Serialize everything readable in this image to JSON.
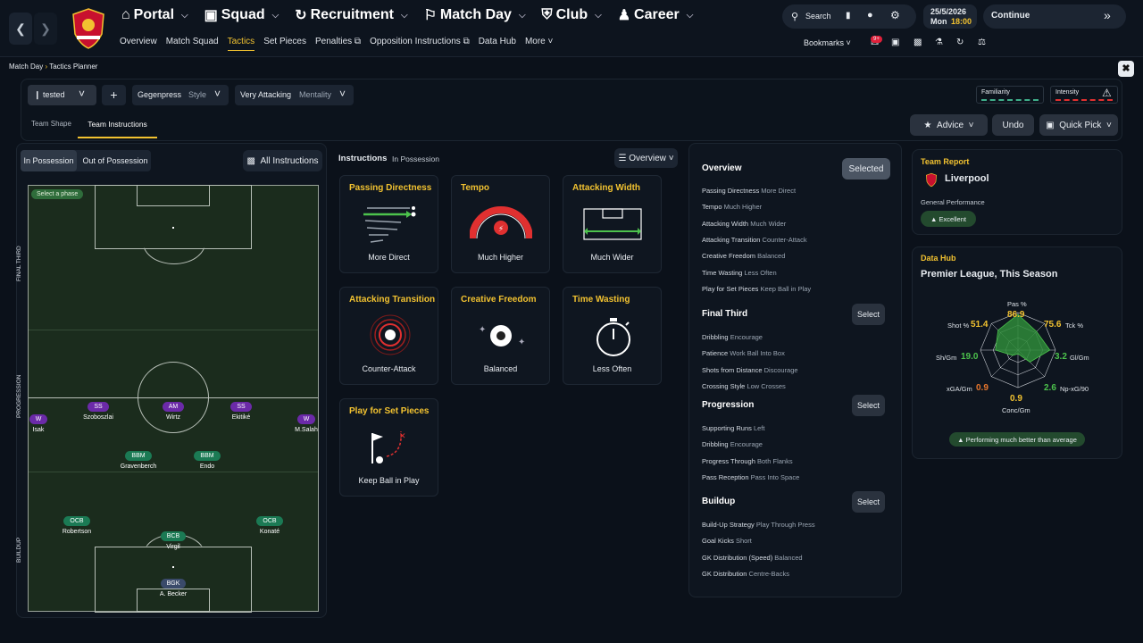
{
  "topbar": {
    "nav": [
      {
        "label": "Portal",
        "icon": "home-icon"
      },
      {
        "label": "Squad",
        "icon": "shirt-icon"
      },
      {
        "label": "Recruitment",
        "icon": "refresh-icon"
      },
      {
        "label": "Match Day",
        "icon": "whistle-icon"
      },
      {
        "label": "Club",
        "icon": "shield-icon"
      },
      {
        "label": "Career",
        "icon": "person-icon"
      }
    ],
    "subnav": [
      "Overview",
      "Match Squad",
      "Tactics",
      "Set Pieces",
      "Penalties",
      "Opposition Instructions",
      "Data Hub",
      "More"
    ],
    "search_label": "Search",
    "date": "25/5/2026",
    "day": "Mon",
    "time": "18:00",
    "continue_label": "Continue",
    "bookmarks_label": "Bookmarks",
    "notif_badge": "9+"
  },
  "breadcrumb": {
    "parent": "Match Day",
    "current": "Tactics Planner"
  },
  "toolbar": {
    "tactic_name": "tested",
    "style_value": "Gegenpress",
    "style_label": "Style",
    "mentality_value": "Very Attacking",
    "mentality_label": "Mentality",
    "familiarity_label": "Familiarity",
    "intensity_label": "Intensity",
    "advice_label": "Advice",
    "undo_label": "Undo",
    "quickpick_label": "Quick Pick",
    "colors": {
      "familiarity": "#3fae8a",
      "intensity": "#e03030"
    }
  },
  "tabs": {
    "team_shape": "Team Shape",
    "team_instructions": "Team Instructions"
  },
  "pitch_panel": {
    "in_possession": "In Possession",
    "out_possession": "Out of Possession",
    "all_instructions": "All Instructions",
    "select_phase": "Select a phase",
    "zones": [
      "FINAL THIRD",
      "PROGRESSION",
      "BUILDUP"
    ],
    "players": [
      {
        "pos": "W",
        "name": "Isak",
        "color": "purple"
      },
      {
        "pos": "SS",
        "name": "Szoboszlai",
        "color": "purple"
      },
      {
        "pos": "AM",
        "name": "Wirtz",
        "color": "purple"
      },
      {
        "pos": "SS",
        "name": "Ekitiké",
        "color": "purple"
      },
      {
        "pos": "W",
        "name": "M.Salah",
        "color": "purple"
      },
      {
        "pos": "BBM",
        "name": "Gravenberch",
        "color": "green"
      },
      {
        "pos": "BBM",
        "name": "Endo",
        "color": "green"
      },
      {
        "pos": "OCB",
        "name": "Robertson",
        "color": "green"
      },
      {
        "pos": "BCB",
        "name": "Virgil",
        "color": "green"
      },
      {
        "pos": "OCB",
        "name": "Konaté",
        "color": "green"
      },
      {
        "pos": "BGK",
        "name": "A. Becker",
        "color": "blue"
      }
    ]
  },
  "instructions": {
    "title": "Instructions",
    "subtitle": "In Possession",
    "view_label": "Overview",
    "cards": [
      {
        "title": "Passing Directness",
        "value": "More Direct"
      },
      {
        "title": "Tempo",
        "value": "Much Higher"
      },
      {
        "title": "Attacking Width",
        "value": "Much Wider"
      },
      {
        "title": "Attacking Transition",
        "value": "Counter-Attack"
      },
      {
        "title": "Creative Freedom",
        "value": "Balanced"
      },
      {
        "title": "Time Wasting",
        "value": "Less Often"
      },
      {
        "title": "Play for Set Pieces",
        "value": "Keep Ball in Play"
      }
    ]
  },
  "overview": {
    "title": "Overview",
    "selected_label": "Selected",
    "select_label": "Select",
    "overview_rows": [
      {
        "k": "Passing Directness",
        "v": "More Direct"
      },
      {
        "k": "Tempo",
        "v": "Much Higher"
      },
      {
        "k": "Attacking Width",
        "v": "Much Wider"
      },
      {
        "k": "Attacking Transition",
        "v": "Counter-Attack"
      },
      {
        "k": "Creative Freedom",
        "v": "Balanced"
      },
      {
        "k": "Time Wasting",
        "v": "Less Often"
      },
      {
        "k": "Play for Set Pieces",
        "v": "Keep Ball in Play"
      }
    ],
    "final_third_title": "Final Third",
    "final_third_rows": [
      {
        "k": "Dribbling",
        "v": "Encourage"
      },
      {
        "k": "Patience",
        "v": "Work Ball Into Box"
      },
      {
        "k": "Shots from Distance",
        "v": "Discourage"
      },
      {
        "k": "Crossing Style",
        "v": "Low Crosses"
      }
    ],
    "progression_title": "Progression",
    "progression_rows": [
      {
        "k": "Supporting Runs",
        "v": "Left"
      },
      {
        "k": "Dribbling",
        "v": "Encourage"
      },
      {
        "k": "Progress Through",
        "v": "Both Flanks"
      },
      {
        "k": "Pass Reception",
        "v": "Pass Into Space"
      }
    ],
    "buildup_title": "Buildup",
    "buildup_rows": [
      {
        "k": "Build-Up Strategy",
        "v": "Play Through Press"
      },
      {
        "k": "Goal Kicks",
        "v": "Short"
      },
      {
        "k": "GK Distribution (Speed)",
        "v": "Balanced"
      },
      {
        "k": "GK Distribution",
        "v": "Centre-Backs"
      }
    ]
  },
  "team_report": {
    "title": "Team Report",
    "team": "Liverpool",
    "perf_label": "General Performance",
    "perf_value": "Excellent"
  },
  "data_hub": {
    "title": "Data Hub",
    "subtitle": "Premier League, This Season",
    "footer": "Performing much better than average",
    "stats": [
      {
        "label": "Pas %",
        "value": "86.9",
        "color": "#f2c230"
      },
      {
        "label": "Tck %",
        "value": "75.6",
        "color": "#f2c230"
      },
      {
        "label": "Gl/Gm",
        "value": "3.2",
        "color": "#4cc24c"
      },
      {
        "label": "Np-xG/90",
        "value": "2.6",
        "color": "#4cc24c"
      },
      {
        "label": "Conc/Gm",
        "value": "0.9",
        "color": "#f2c230"
      },
      {
        "label": "xGA/Gm",
        "value": "0.9",
        "color": "#e8762c"
      },
      {
        "label": "Sh/Gm",
        "value": "19.0",
        "color": "#4cc24c"
      },
      {
        "label": "Shot %",
        "value": "51.4",
        "color": "#f2c230"
      }
    ]
  }
}
